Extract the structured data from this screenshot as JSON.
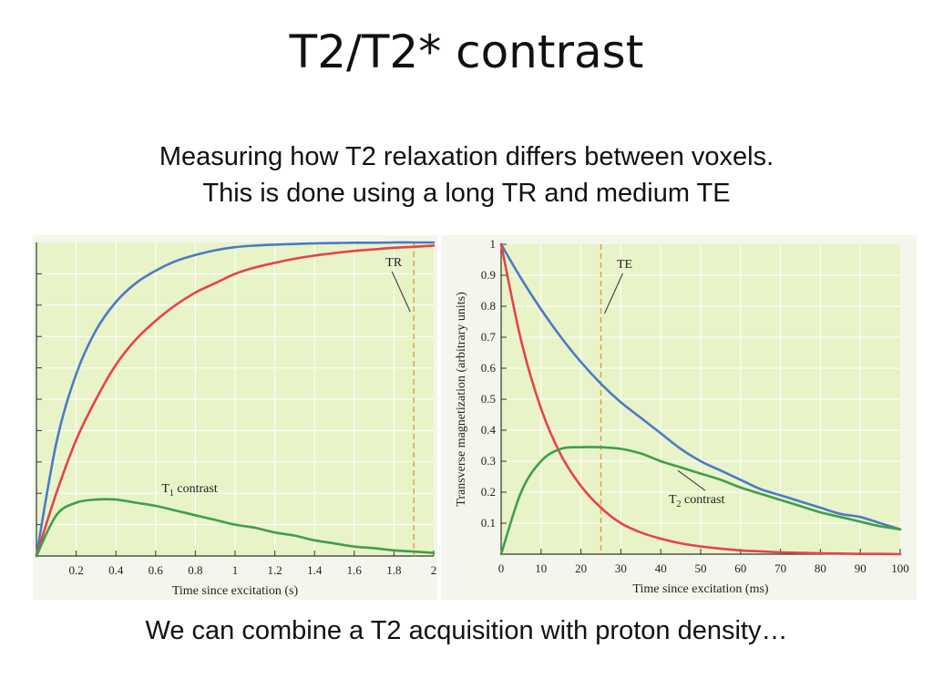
{
  "slide": {
    "title": "T2/T2* contrast",
    "subtitle_line1": "Measuring how T2 relaxation differs between voxels.",
    "subtitle_line2": "This is done using a long TR and medium TE",
    "footer": "We can combine a T2 acquisition with proton density…"
  },
  "colors": {
    "plot_bg": "#e8f3c8",
    "grid": "#ffffff",
    "blue_curve": "#4a7bc6",
    "red_curve": "#e8424a",
    "green_curve": "#3f9f4a",
    "marker": "#e0a050"
  },
  "chart_data": [
    {
      "type": "line",
      "xlabel": "Time since excitation (s)",
      "ylabel": "",
      "xlim": [
        0,
        2
      ],
      "ylim": [
        0,
        1
      ],
      "x_ticks": [
        0.2,
        0.4,
        0.6,
        0.8,
        1,
        1.2,
        1.4,
        1.6,
        1.8,
        2
      ],
      "x_tick_labels": [
        "0.2",
        "0.4",
        "0.6",
        "0.8",
        "1",
        "1.2",
        "1.4",
        "1.6",
        "1.8",
        "2"
      ],
      "grid": true,
      "x": [
        0,
        0.1,
        0.2,
        0.3,
        0.4,
        0.5,
        0.6,
        0.7,
        0.8,
        0.9,
        1.0,
        1.1,
        1.2,
        1.3,
        1.4,
        1.5,
        1.6,
        1.7,
        1.8,
        1.9,
        2.0
      ],
      "series": [
        {
          "color": "blue",
          "values": [
            0,
            0.36,
            0.58,
            0.72,
            0.81,
            0.87,
            0.91,
            0.94,
            0.96,
            0.975,
            0.985,
            0.99,
            0.993,
            0.995,
            0.997,
            0.998,
            0.999,
            0.999,
            1.0,
            1.0,
            1.0
          ]
        },
        {
          "color": "red",
          "values": [
            0,
            0.2,
            0.37,
            0.5,
            0.61,
            0.69,
            0.75,
            0.8,
            0.84,
            0.87,
            0.9,
            0.92,
            0.935,
            0.948,
            0.958,
            0.966,
            0.973,
            0.978,
            0.983,
            0.986,
            0.99
          ]
        },
        {
          "color": "green",
          "values": [
            0,
            0.13,
            0.17,
            0.18,
            0.18,
            0.17,
            0.16,
            0.145,
            0.13,
            0.115,
            0.1,
            0.09,
            0.075,
            0.065,
            0.05,
            0.04,
            0.03,
            0.025,
            0.018,
            0.014,
            0.01
          ]
        }
      ],
      "marker": {
        "label": "TR",
        "x": 1.9
      },
      "annotations": [
        {
          "text": "T",
          "sub": "1",
          "rest": " contrast",
          "x": 0.63,
          "y": 0.18
        }
      ]
    },
    {
      "type": "line",
      "xlabel": "Time since excitation (ms)",
      "ylabel": "Transverse magnetization (arbitrary units)",
      "xlim": [
        0,
        100
      ],
      "ylim": [
        0,
        1
      ],
      "x_ticks": [
        0,
        10,
        20,
        30,
        40,
        50,
        60,
        70,
        80,
        90,
        100
      ],
      "x_tick_labels": [
        "0",
        "10",
        "20",
        "30",
        "40",
        "50",
        "60",
        "70",
        "80",
        "90",
        "100"
      ],
      "y_ticks": [
        0.1,
        0.2,
        0.3,
        0.4,
        0.5,
        0.6,
        0.7,
        0.8,
        0.9,
        1
      ],
      "y_tick_labels": [
        "0.1",
        "0.2",
        "0.3",
        "0.4",
        "0.5",
        "0.6",
        "0.7",
        "0.8",
        "0.9",
        "1"
      ],
      "grid": true,
      "x": [
        0,
        5,
        10,
        15,
        20,
        25,
        30,
        35,
        40,
        45,
        50,
        55,
        60,
        65,
        70,
        75,
        80,
        85,
        90,
        95,
        100
      ],
      "series": [
        {
          "color": "blue",
          "values": [
            1.0,
            0.89,
            0.79,
            0.7,
            0.62,
            0.55,
            0.49,
            0.44,
            0.39,
            0.34,
            0.3,
            0.27,
            0.24,
            0.21,
            0.19,
            0.17,
            0.15,
            0.13,
            0.12,
            0.1,
            0.08
          ]
        },
        {
          "color": "red",
          "values": [
            1.0,
            0.69,
            0.47,
            0.32,
            0.22,
            0.15,
            0.1,
            0.07,
            0.05,
            0.035,
            0.025,
            0.018,
            0.012,
            0.009,
            0.006,
            0.004,
            0.003,
            0.002,
            0.001,
            0.001,
            0.0
          ]
        },
        {
          "color": "green",
          "values": [
            0,
            0.2,
            0.3,
            0.34,
            0.345,
            0.345,
            0.34,
            0.325,
            0.3,
            0.28,
            0.26,
            0.24,
            0.215,
            0.195,
            0.175,
            0.155,
            0.135,
            0.12,
            0.105,
            0.09,
            0.08
          ]
        }
      ],
      "marker": {
        "label": "TE",
        "x": 25
      },
      "annotations": [
        {
          "text": "T",
          "sub": "2",
          "rest": " contrast",
          "x": 42,
          "y": 0.17
        }
      ]
    }
  ]
}
